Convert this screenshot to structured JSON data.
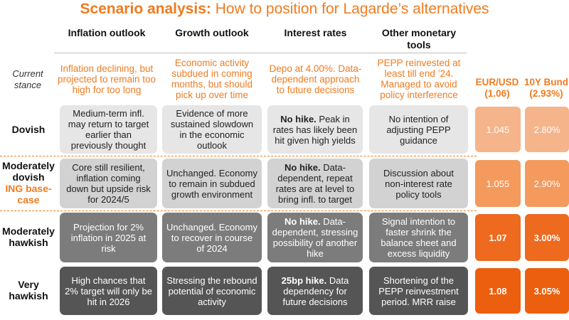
{
  "title": {
    "bold": "Scenario analysis:",
    "rest": "How to position for Lagarde’s alternatives"
  },
  "columns": [
    {
      "label": "Inflation outlook"
    },
    {
      "label": "Growth outlook"
    },
    {
      "label": "Interest rates"
    },
    {
      "label": "Other monetary tools"
    }
  ],
  "current_stance": {
    "label": "Current stance",
    "cells": [
      "Inflation declining, but projected to remain too high for too long",
      "Economic activity subdued in coming months, but should pick up over time",
      "Depo at 4.00%. Data-dependent approach to future decisions",
      "PEPP reinvested at least till end ’24. Managed to avoid policy interference"
    ]
  },
  "markets": [
    {
      "name": "EUR/USD",
      "current": "(1.06)"
    },
    {
      "name": "10Y Bund",
      "current": "(2.93%)"
    }
  ],
  "scenarios": [
    {
      "label_lines": [
        "Dovish"
      ],
      "base_case": "",
      "cells": [
        {
          "bold": "",
          "text": "Medium-term infl. may return to target earlier than previously thought"
        },
        {
          "bold": "",
          "text": "Evidence of more sustained slowdown in the economic outlook"
        },
        {
          "bold": "No hike.",
          "text": " Peak in rates has likely been hit given high yields"
        },
        {
          "bold": "",
          "text": "No intention of adjusting PEPP guidance"
        }
      ],
      "eurusd": "1.045",
      "bund": "2.80%",
      "color": "#f6b48a"
    },
    {
      "label_lines": [
        "Moderately",
        "dovish"
      ],
      "base_case": "ING base-case",
      "cells": [
        {
          "bold": "",
          "text": "Core still resilient, inflation coming down but upside risk for 2024/5"
        },
        {
          "bold": "",
          "text": "Unchanged. Economy to remain in subdued growth environment"
        },
        {
          "bold": "No hike.",
          "text": " Data-dependent, repeat rates are at level to bring infl. to target"
        },
        {
          "bold": "",
          "text": "Discussion about non-interest rate policy tools"
        }
      ],
      "eurusd": "1.055",
      "bund": "2.90%",
      "color": "#f39a5c"
    },
    {
      "label_lines": [
        "Moderately",
        "hawkish"
      ],
      "base_case": "",
      "cells": [
        {
          "bold": "",
          "text": "Projection for 2% inflation in 2025 at risk"
        },
        {
          "bold": "",
          "text": "Unchanged. Economy to recover in course of 2024"
        },
        {
          "bold": "No hike.",
          "text": " Data-dependent, stressing possibility of another hike"
        },
        {
          "bold": "",
          "text": "Signal intention to faster shrink the balance sheet and excess liquidity"
        }
      ],
      "eurusd": "1.07",
      "bund": "3.00%",
      "color": "#ee6a1e"
    },
    {
      "label_lines": [
        "Very",
        "hawkish"
      ],
      "base_case": "",
      "cells": [
        {
          "bold": "",
          "text": "High chances that 2% target will only be hit in 2026"
        },
        {
          "bold": "",
          "text": "Stressing the rebound potential of economic activity"
        },
        {
          "bold": "25bp hike.",
          "text": " Data dependency for future decisions"
        },
        {
          "bold": "",
          "text": "Shortening of the PEPP reinvestment period. MRR raise"
        }
      ],
      "eurusd": "1.08",
      "bund": "3.05%",
      "color": "#ec5f0e"
    }
  ]
}
